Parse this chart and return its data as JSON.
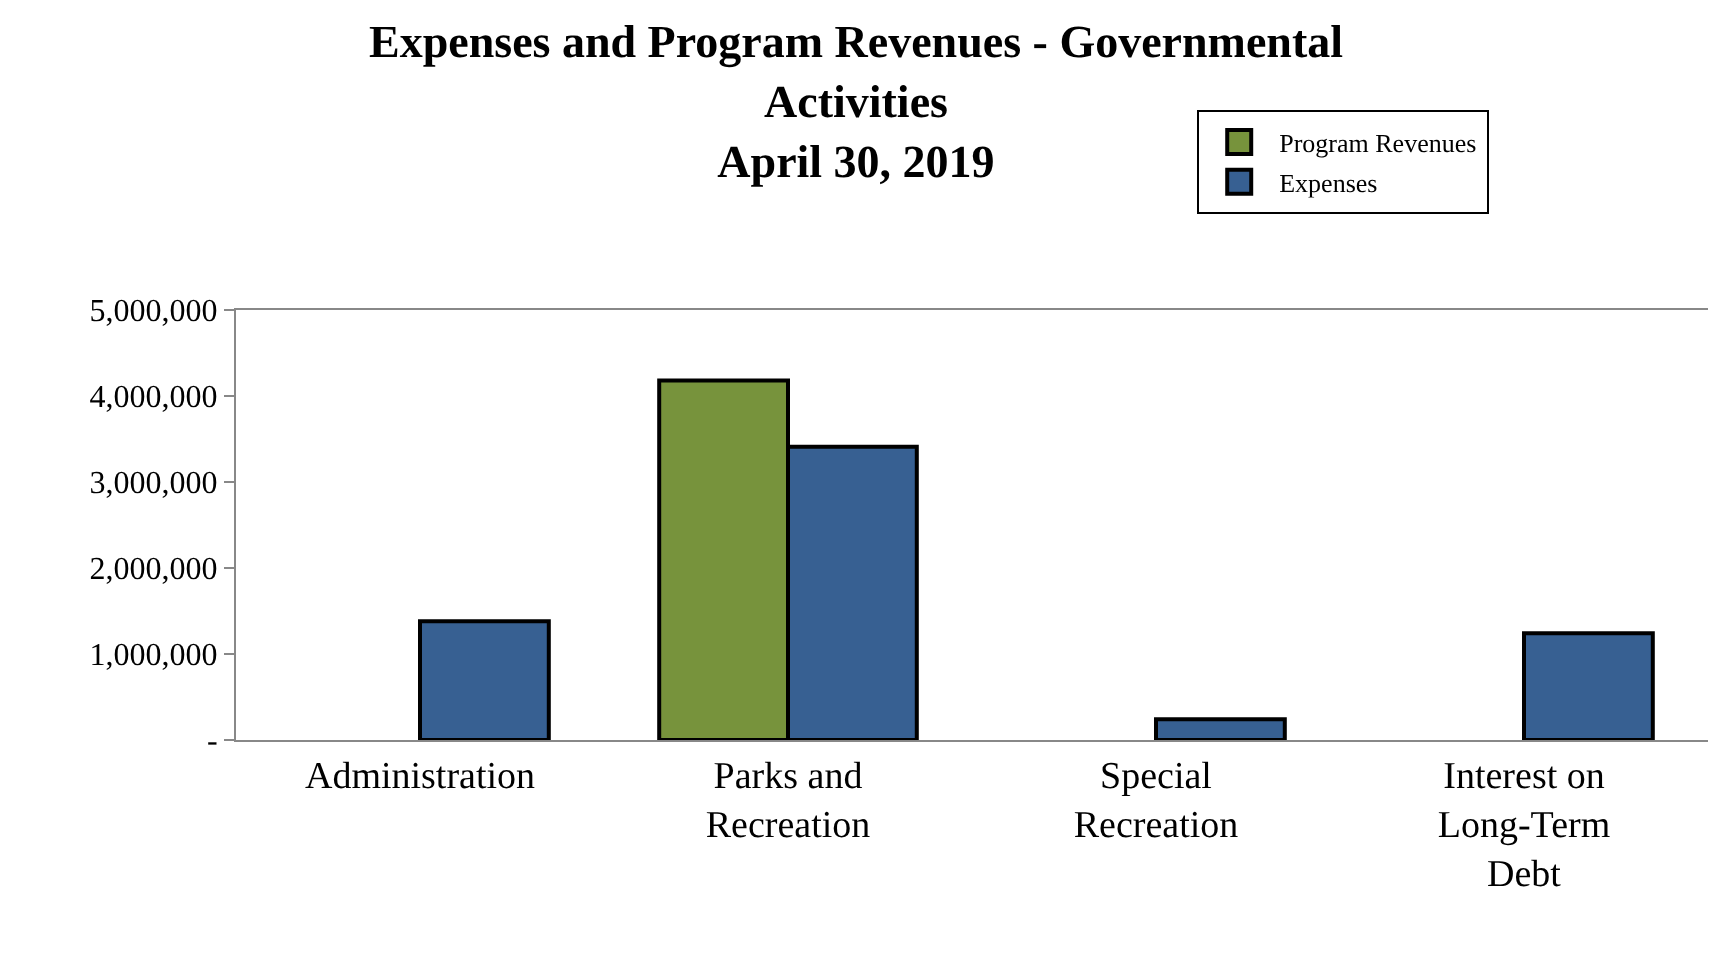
{
  "chart_data": {
    "type": "bar",
    "title": "Expenses and Program Revenues - Governmental Activities",
    "subtitle": "April 30, 2019",
    "categories": [
      "Administration",
      "Parks and Recreation",
      "Special Recreation",
      "Interest on Long-Term Debt"
    ],
    "series": [
      {
        "name": "Program Revenues",
        "color": "#77933c",
        "values": [
          null,
          4180000,
          null,
          null
        ]
      },
      {
        "name": "Expenses",
        "color": "#376092",
        "values": [
          1380000,
          3410000,
          240000,
          1240000
        ]
      }
    ],
    "ylim": [
      0,
      5000000
    ],
    "yticks": [
      {
        "value": 0,
        "label": "-"
      },
      {
        "value": 1000000,
        "label": "1,000,000"
      },
      {
        "value": 2000000,
        "label": "2,000,000"
      },
      {
        "value": 3000000,
        "label": "3,000,000"
      },
      {
        "value": 4000000,
        "label": "4,000,000"
      },
      {
        "value": 5000000,
        "label": "5,000,000"
      }
    ],
    "legend": "top right"
  }
}
